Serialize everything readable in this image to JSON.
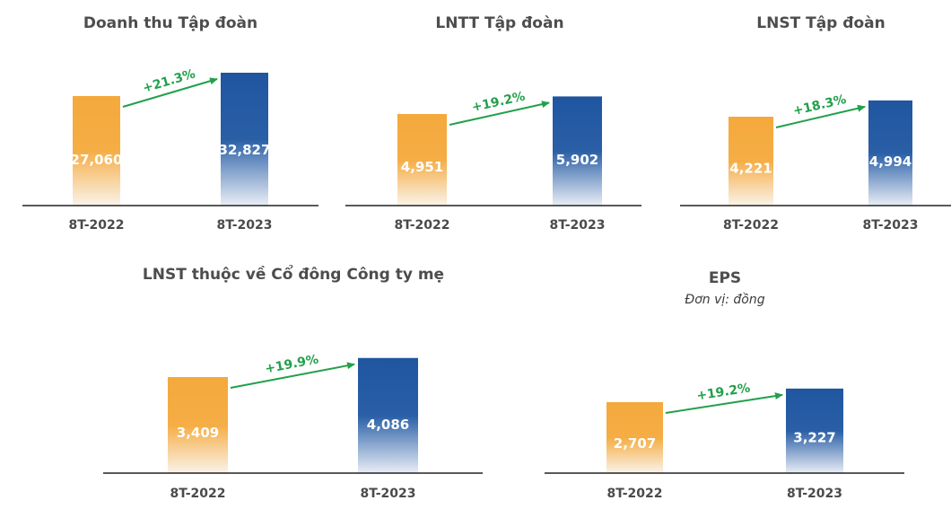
{
  "colors": {
    "bar_2022": "#f4a93c",
    "bar_2023": "#1f56a0",
    "growth": "#22a04b",
    "axis": "#222222",
    "text": "#4a4a4a"
  },
  "chart_data": [
    {
      "type": "bar",
      "title": "Doanh thu Tập đoàn",
      "subtitle": "",
      "categories": [
        "8T-2022",
        "8T-2023"
      ],
      "values": [
        27060,
        32827
      ],
      "value_labels": [
        "27,060",
        "32,827"
      ],
      "growth_label": "+21.3%",
      "xlabel": "",
      "ylabel": "",
      "grid": false,
      "legend": "none"
    },
    {
      "type": "bar",
      "title": "LNTT Tập đoàn",
      "subtitle": "",
      "categories": [
        "8T-2022",
        "8T-2023"
      ],
      "values": [
        4951,
        5902
      ],
      "value_labels": [
        "4,951",
        "5,902"
      ],
      "growth_label": "+19.2%",
      "xlabel": "",
      "ylabel": "",
      "grid": false,
      "legend": "none"
    },
    {
      "type": "bar",
      "title": "LNST Tập đoàn",
      "subtitle": "",
      "categories": [
        "8T-2022",
        "8T-2023"
      ],
      "values": [
        4221,
        4994
      ],
      "value_labels": [
        "4,221",
        "4,994"
      ],
      "growth_label": "+18.3%",
      "xlabel": "",
      "ylabel": "",
      "grid": false,
      "legend": "none"
    },
    {
      "type": "bar",
      "title": "LNST thuộc về Cổ đông Công ty mẹ",
      "subtitle": "",
      "categories": [
        "8T-2022",
        "8T-2023"
      ],
      "values": [
        3409,
        4086
      ],
      "value_labels": [
        "3,409",
        "4,086"
      ],
      "growth_label": "+19.9%",
      "xlabel": "",
      "ylabel": "",
      "grid": false,
      "legend": "none"
    },
    {
      "type": "bar",
      "title": "EPS",
      "subtitle": "Đơn vị: đồng",
      "categories": [
        "8T-2022",
        "8T-2023"
      ],
      "values": [
        2707,
        3227
      ],
      "value_labels": [
        "2,707",
        "3,227"
      ],
      "growth_label": "+19.2%",
      "xlabel": "",
      "ylabel": "",
      "grid": false,
      "legend": "none"
    }
  ]
}
